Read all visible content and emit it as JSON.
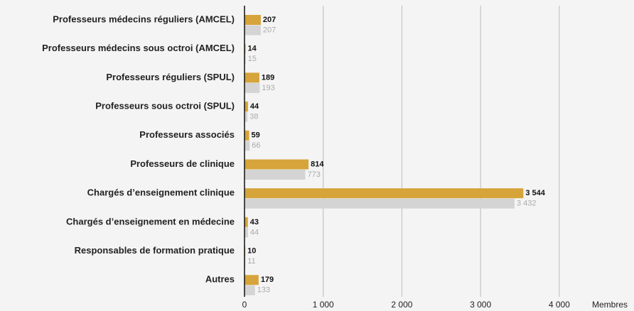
{
  "chart_data": {
    "type": "hbar",
    "categories": [
      "Professeurs médecins réguliers (AMCEL)",
      "Professeurs médecins sous octroi (AMCEL)",
      "Professeurs réguliers (SPUL)",
      "Professeurs sous octroi (SPUL)",
      "Professeurs associés",
      "Professeurs de clinique",
      "Chargés d’enseignement clinique",
      "Chargés d’enseignement en médecine",
      "Responsables de formation pratique",
      "Autres"
    ],
    "series": [
      {
        "color": "#d6a43a",
        "values": [
          207,
          14,
          189,
          44,
          59,
          814,
          3544,
          43,
          10,
          179
        ],
        "value_labels": [
          "207",
          "14",
          "189",
          "44",
          "59",
          "814",
          "3 544",
          "43",
          "10",
          "179"
        ]
      },
      {
        "color": "#d4d4d4",
        "values": [
          207,
          15,
          193,
          38,
          66,
          773,
          3432,
          44,
          11,
          133
        ],
        "value_labels": [
          "207",
          "15",
          "193",
          "38",
          "66",
          "773",
          "3 432",
          "44",
          "11",
          "133"
        ]
      }
    ],
    "xlabel": "Membres",
    "xlim": [
      0,
      4950
    ],
    "xticks": [
      0,
      {
        "value": 1000,
        "label": "1 000"
      },
      {
        "value": 2000,
        "label": "2 000"
      },
      {
        "value": 3000,
        "label": "3 000"
      },
      {
        "value": 4000,
        "label": "4 000"
      }
    ],
    "grid": true
  }
}
